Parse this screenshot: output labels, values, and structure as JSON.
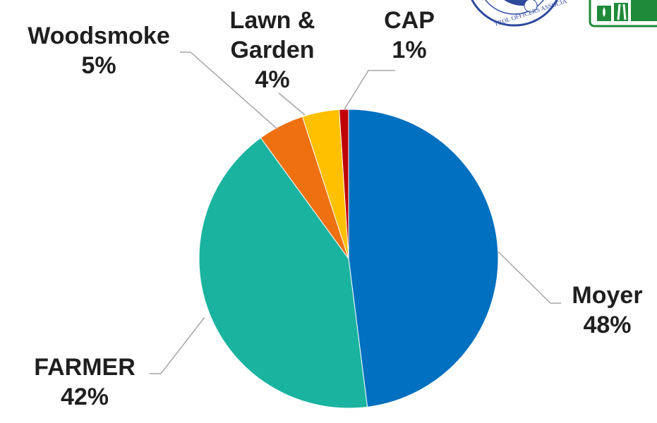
{
  "chart_data": {
    "type": "pie",
    "start_angle_deg": 0,
    "direction": "clockwise",
    "slices": [
      {
        "name": "Moyer",
        "label_name": "Moyer",
        "value": 48,
        "label_value": "48%",
        "color": "#0070C0"
      },
      {
        "name": "FARMER",
        "label_name": "FARMER",
        "value": 42,
        "label_value": "42%",
        "color": "#1AB39F"
      },
      {
        "name": "Woodsmoke",
        "label_name": "Woodsmoke",
        "value": 5,
        "label_value": "5%",
        "color": "#EE7011"
      },
      {
        "name": "Lawn & Garden",
        "label_name_line1": "Lawn &",
        "label_name_line2": "Garden",
        "value": 4,
        "label_value": "4%",
        "color": "#FFC000"
      },
      {
        "name": "CAP",
        "label_name": "CAP",
        "value": 1,
        "label_value": "1%",
        "color": "#C00000"
      }
    ],
    "title": "",
    "legend": "none"
  },
  "logos": {
    "left": {
      "name": "air-pollution-control-officers-association-seal",
      "text": "TROL OFFICERS ASSOCIA",
      "color": "#2E4A9E"
    },
    "right": {
      "name": "water-drop-logo",
      "color": "#1F8A3A"
    }
  }
}
